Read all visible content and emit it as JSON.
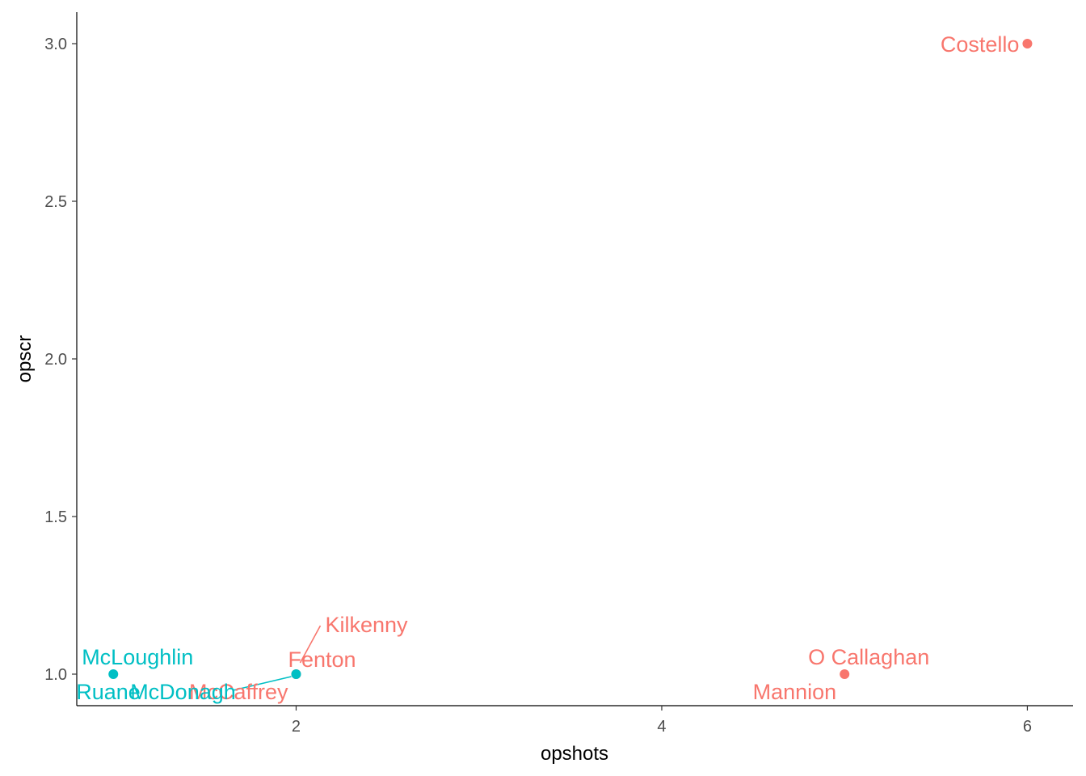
{
  "chart_data": {
    "type": "scatter",
    "title": "",
    "xlabel": "opshots",
    "ylabel": "opscr",
    "xlim": [
      0.8,
      6.25
    ],
    "ylim": [
      0.9,
      3.1
    ],
    "xticks": [
      2,
      4,
      6
    ],
    "yticks": [
      1.0,
      1.5,
      2.0,
      2.5,
      3.0
    ],
    "ytick_labels": [
      "1.0",
      "1.5",
      "2.0",
      "2.5",
      "3.0"
    ],
    "grid": false,
    "legend": "none",
    "group_colors": {
      "a": "#F8766D",
      "b": "#00BFC4"
    },
    "points": [
      {
        "label": "Costello",
        "x": 6,
        "y": 3,
        "group": "a"
      },
      {
        "label": "O Callaghan",
        "x": 5,
        "y": 1,
        "group": "a"
      },
      {
        "label": "Mannion",
        "x": 5,
        "y": 1,
        "group": "a"
      },
      {
        "label": "Kilkenny",
        "x": 2,
        "y": 1,
        "group": "a"
      },
      {
        "label": "Fenton",
        "x": 2,
        "y": 1,
        "group": "a"
      },
      {
        "label": "McCaffrey",
        "x": 2,
        "y": 1,
        "group": "a"
      },
      {
        "label": "McDonagh",
        "x": 2,
        "y": 1,
        "group": "b"
      },
      {
        "label": "McLoughlin",
        "x": 1,
        "y": 1,
        "group": "b"
      },
      {
        "label": "Ruane",
        "x": 1,
        "y": 1,
        "group": "b"
      }
    ]
  }
}
